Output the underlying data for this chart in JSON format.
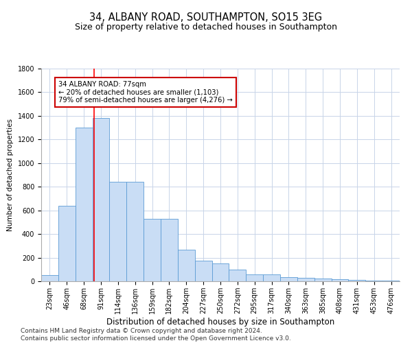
{
  "title1": "34, ALBANY ROAD, SOUTHAMPTON, SO15 3EG",
  "title2": "Size of property relative to detached houses in Southampton",
  "xlabel": "Distribution of detached houses by size in Southampton",
  "ylabel": "Number of detached properties",
  "categories": [
    "23sqm",
    "46sqm",
    "68sqm",
    "91sqm",
    "114sqm",
    "136sqm",
    "159sqm",
    "182sqm",
    "204sqm",
    "227sqm",
    "250sqm",
    "272sqm",
    "295sqm",
    "317sqm",
    "340sqm",
    "363sqm",
    "385sqm",
    "408sqm",
    "431sqm",
    "453sqm",
    "476sqm"
  ],
  "values": [
    50,
    640,
    1300,
    1380,
    840,
    840,
    530,
    530,
    270,
    175,
    150,
    100,
    60,
    60,
    35,
    30,
    25,
    20,
    12,
    8,
    8
  ],
  "bar_color": "#c9ddf5",
  "bar_edge_color": "#5b9bd5",
  "red_line_x": 2.61,
  "annotation_line1": "34 ALBANY ROAD: 77sqm",
  "annotation_line2": "← 20% of detached houses are smaller (1,103)",
  "annotation_line3": "79% of semi-detached houses are larger (4,276) →",
  "annotation_box_color": "#ffffff",
  "annotation_box_edge": "#cc0000",
  "ylim": [
    0,
    1800
  ],
  "yticks": [
    0,
    200,
    400,
    600,
    800,
    1000,
    1200,
    1400,
    1600,
    1800
  ],
  "footer1": "Contains HM Land Registry data © Crown copyright and database right 2024.",
  "footer2": "Contains public sector information licensed under the Open Government Licence v3.0.",
  "bg_color": "#ffffff",
  "grid_color": "#c8d4e8",
  "title1_fontsize": 10.5,
  "title2_fontsize": 9,
  "xlabel_fontsize": 8.5,
  "ylabel_fontsize": 7.5,
  "tick_fontsize": 7,
  "footer_fontsize": 6.5
}
